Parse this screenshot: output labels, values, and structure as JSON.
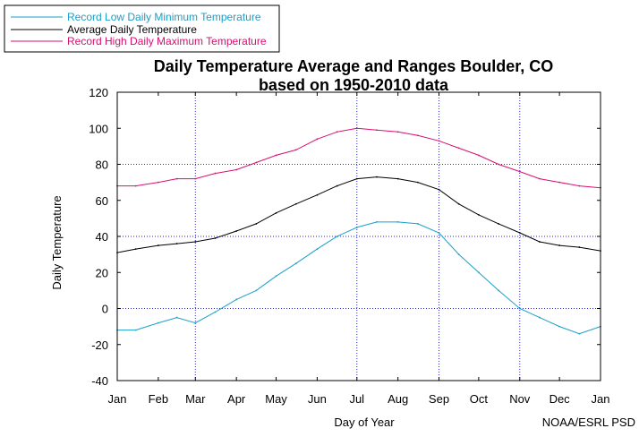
{
  "chart_data": {
    "type": "line",
    "title": "Daily Temperature Average and Ranges Boulder, CO",
    "subtitle": "based on 1950-2010 data",
    "xlabel": "Day of Year",
    "ylabel": "Daily Temperature",
    "credit": "NOAA/ESRL PSD",
    "ylim": [
      -40,
      120
    ],
    "xlim": [
      1,
      366
    ],
    "grid": true,
    "legend_position": "top-left",
    "x_ticks": [
      {
        "label": "Jan",
        "day": 1
      },
      {
        "label": "Feb",
        "day": 32
      },
      {
        "label": "Mar",
        "day": 60
      },
      {
        "label": "Apr",
        "day": 91
      },
      {
        "label": "May",
        "day": 121
      },
      {
        "label": "Jun",
        "day": 152
      },
      {
        "label": "Jul",
        "day": 182
      },
      {
        "label": "Aug",
        "day": 213
      },
      {
        "label": "Sep",
        "day": 244
      },
      {
        "label": "Oct",
        "day": 274
      },
      {
        "label": "Nov",
        "day": 305
      },
      {
        "label": "Dec",
        "day": 335
      },
      {
        "label": "Jan",
        "day": 366
      }
    ],
    "y_ticks": [
      120,
      100,
      80,
      60,
      40,
      20,
      0,
      -20,
      -40
    ],
    "gridline_days": [
      60,
      182,
      244,
      305
    ],
    "gridline_temps": [
      80,
      40,
      0
    ],
    "series": [
      {
        "name": "Record Low Daily Minimum Temperature",
        "color": "#1a9fc9",
        "x": [
          1,
          15,
          32,
          46,
          60,
          75,
          91,
          106,
          121,
          136,
          152,
          167,
          182,
          197,
          213,
          228,
          244,
          259,
          274,
          289,
          305,
          320,
          335,
          350,
          366
        ],
        "values": [
          -12,
          -12,
          -8,
          -5,
          -8,
          -2,
          5,
          10,
          18,
          25,
          33,
          40,
          45,
          48,
          48,
          47,
          42,
          30,
          20,
          10,
          0,
          -5,
          -10,
          -14,
          -10
        ]
      },
      {
        "name": "Average Daily Temperature",
        "color": "#000000",
        "x": [
          1,
          15,
          32,
          46,
          60,
          75,
          91,
          106,
          121,
          136,
          152,
          167,
          182,
          197,
          213,
          228,
          244,
          259,
          274,
          289,
          305,
          320,
          335,
          350,
          366
        ],
        "values": [
          31,
          33,
          35,
          36,
          37,
          39,
          43,
          47,
          53,
          58,
          63,
          68,
          72,
          73,
          72,
          70,
          66,
          58,
          52,
          47,
          42,
          37,
          35,
          34,
          32
        ]
      },
      {
        "name": "Record High Daily Maximum Temperature",
        "color": "#d6106f",
        "x": [
          1,
          15,
          32,
          46,
          60,
          75,
          91,
          106,
          121,
          136,
          152,
          167,
          182,
          197,
          213,
          228,
          244,
          259,
          274,
          289,
          305,
          320,
          335,
          350,
          366
        ],
        "values": [
          68,
          68,
          70,
          72,
          72,
          75,
          77,
          81,
          85,
          88,
          94,
          98,
          100,
          99,
          98,
          96,
          93,
          89,
          85,
          80,
          76,
          72,
          70,
          68,
          67
        ]
      }
    ]
  }
}
